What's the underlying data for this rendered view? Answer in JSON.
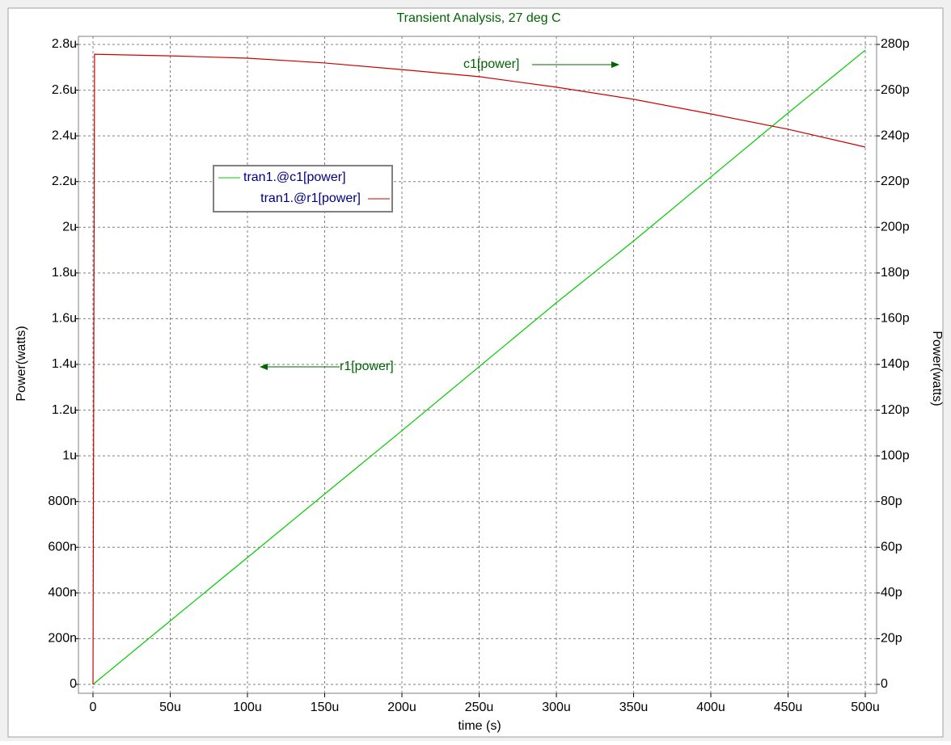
{
  "chart_data": {
    "type": "line",
    "title": "Transient Analysis, 27 deg C",
    "x_label": "time (s)",
    "y_label": "Power(watts)",
    "y2_label": "Power(watts)",
    "xlim": [
      0,
      0.0005
    ],
    "xticks": [
      0,
      {
        "value": 5e-05,
        "label": "50u"
      },
      {
        "value": 0.0001,
        "label": "100u"
      },
      {
        "value": 0.00015,
        "label": "150u"
      },
      {
        "value": 0.0002,
        "label": "200u"
      },
      {
        "value": 0.00025,
        "label": "250u"
      },
      {
        "value": 0.0003,
        "label": "300u"
      },
      {
        "value": 0.00035,
        "label": "350u"
      },
      {
        "value": 0.0004,
        "label": "400u"
      },
      {
        "value": 0.00045,
        "label": "450u"
      },
      {
        "value": 0.0005,
        "label": "500u"
      }
    ],
    "ylim": [
      0,
      2.8e-06
    ],
    "yticks": [
      0,
      {
        "value": 2e-07,
        "label": "200n"
      },
      {
        "value": 4e-07,
        "label": "400n"
      },
      {
        "value": 6e-07,
        "label": "600n"
      },
      {
        "value": 8e-07,
        "label": "800n"
      },
      {
        "value": 1e-06,
        "label": "1u"
      },
      {
        "value": 1.2e-06,
        "label": "1.2u"
      },
      {
        "value": 1.4e-06,
        "label": "1.4u"
      },
      {
        "value": 1.6e-06,
        "label": "1.6u"
      },
      {
        "value": 1.8e-06,
        "label": "1.8u"
      },
      {
        "value": 2e-06,
        "label": "2u"
      },
      {
        "value": 2.2e-06,
        "label": "2.2u"
      },
      {
        "value": 2.4e-06,
        "label": "2.4u"
      },
      {
        "value": 2.6e-06,
        "label": "2.6u"
      },
      {
        "value": 2.8e-06,
        "label": "2.8u"
      }
    ],
    "y2lim": [
      0,
      2.8e-10
    ],
    "y2ticks": [
      0,
      {
        "value": 2e-11,
        "label": "20p"
      },
      {
        "value": 4e-11,
        "label": "40p"
      },
      {
        "value": 6e-11,
        "label": "60p"
      },
      {
        "value": 8e-11,
        "label": "80p"
      },
      {
        "value": 1e-10,
        "label": "100p"
      },
      {
        "value": 1.2e-10,
        "label": "120p"
      },
      {
        "value": 1.4e-10,
        "label": "140p"
      },
      {
        "value": 1.6e-10,
        "label": "160p"
      },
      {
        "value": 1.8e-10,
        "label": "180p"
      },
      {
        "value": 2e-10,
        "label": "200p"
      },
      {
        "value": 2.2e-10,
        "label": "220p"
      },
      {
        "value": 2.4e-10,
        "label": "240p"
      },
      {
        "value": 2.6e-10,
        "label": "260p"
      },
      {
        "value": 2.8e-10,
        "label": "280p"
      }
    ],
    "grid": true,
    "series": [
      {
        "name": "tran1.@c1[power]",
        "color": "#00cc00",
        "axis": "y2",
        "x": [
          0,
          5e-05,
          0.0001,
          0.00015,
          0.0002,
          0.00025,
          0.0003,
          0.00035,
          0.0004,
          0.00045,
          0.0005
        ],
        "values": [
          0,
          2.78e-11,
          5.55e-11,
          8.33e-11,
          1.11e-10,
          1.39e-10,
          1.67e-10,
          1.94e-10,
          2.22e-10,
          2.5e-10,
          2.775e-10
        ]
      },
      {
        "name": "tran1.@r1[power]",
        "color": "#cc0000",
        "axis": "y",
        "x": [
          0,
          1e-06,
          5e-05,
          0.0001,
          0.00015,
          0.0002,
          0.00025,
          0.0003,
          0.00035,
          0.0004,
          0.00045,
          0.0005
        ],
        "values": [
          0,
          2.757e-06,
          2.75e-06,
          2.74e-06,
          2.719e-06,
          2.69e-06,
          2.659e-06,
          2.613e-06,
          2.56e-06,
          2.496e-06,
          2.429e-06,
          2.351e-06
        ]
      }
    ],
    "annotations": [
      "c1[power]",
      "r1[power]"
    ]
  }
}
